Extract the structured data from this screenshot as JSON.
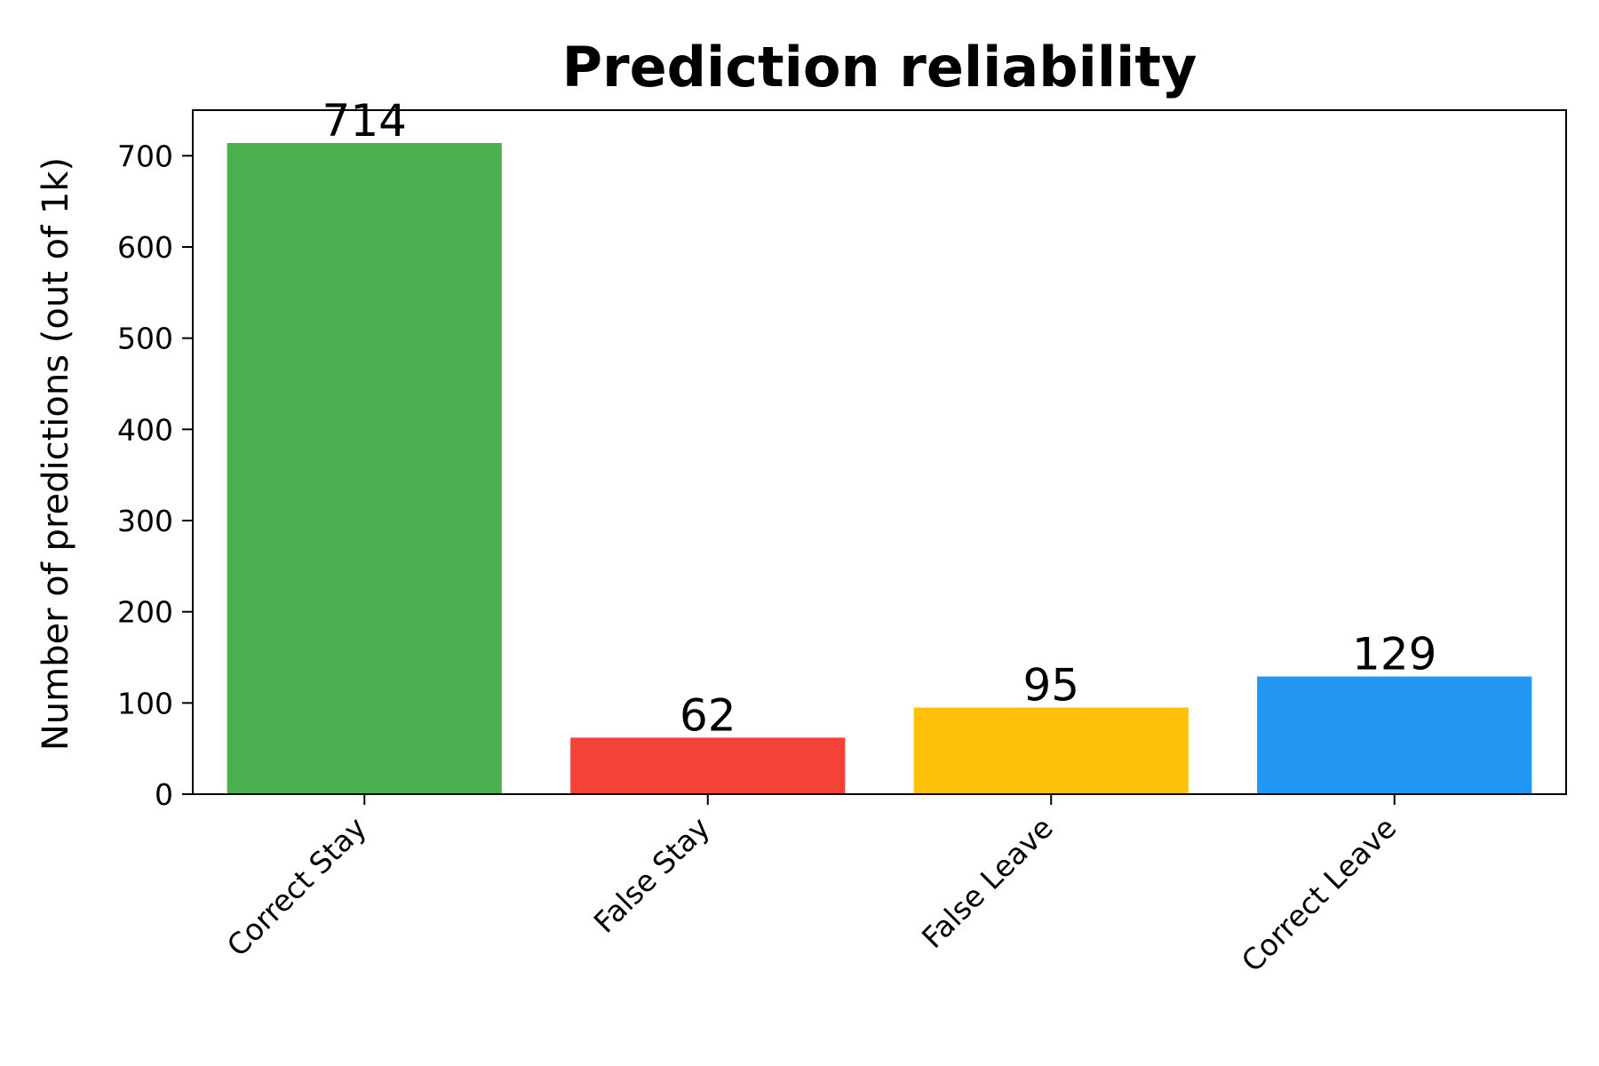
{
  "chart_data": {
    "type": "bar",
    "title": "Prediction reliability",
    "xlabel": "",
    "ylabel": "Number of predictions (out of 1k)",
    "categories": [
      "Correct Stay",
      "False Stay",
      "False Leave",
      "Correct Leave"
    ],
    "values": [
      714,
      62,
      95,
      129
    ],
    "data_labels": [
      "714",
      "62",
      "95",
      "129"
    ],
    "colors": [
      "#4caf50",
      "#f44336",
      "#ffc107",
      "#2196f3"
    ],
    "ylim": [
      0,
      750
    ],
    "yticks": [
      0,
      100,
      200,
      300,
      400,
      500,
      600,
      700
    ],
    "grid": false,
    "legend": "none"
  }
}
